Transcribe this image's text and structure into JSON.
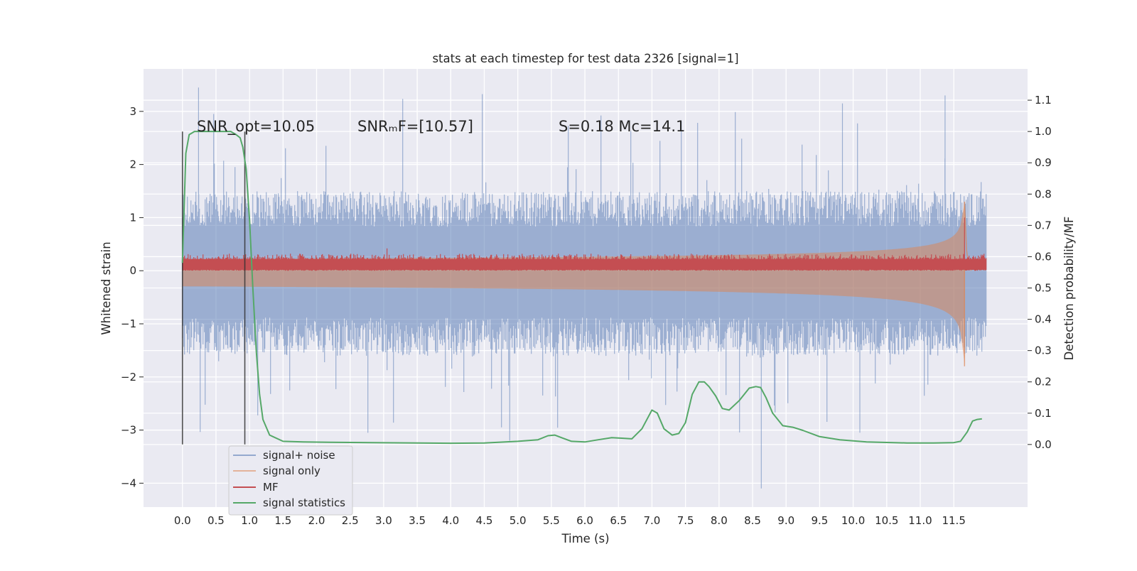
{
  "chart_data": {
    "type": "line",
    "title": "stats at each timestep for test data 2326 [signal=1]",
    "xlabel": "Time (s)",
    "ylabel": "Whitened strain",
    "y2label": "Detection probability/MF",
    "xlim": [
      -0.58,
      12.6
    ],
    "ylim": [
      -4.45,
      3.8
    ],
    "y2lim": [
      -0.2,
      1.2
    ],
    "x_ticks": [
      0.0,
      0.5,
      1.0,
      1.5,
      2.0,
      2.5,
      3.0,
      3.5,
      4.0,
      4.5,
      5.0,
      5.5,
      6.0,
      6.5,
      7.0,
      7.5,
      8.0,
      8.5,
      9.0,
      9.5,
      10.0,
      10.5,
      11.0,
      11.5
    ],
    "x_tick_labels": [
      "0.0",
      "0.5",
      "1.0",
      "1.5",
      "2.0",
      "2.5",
      "3.0",
      "3.5",
      "4.0",
      "4.5",
      "5.0",
      "5.5",
      "6.0",
      "6.5",
      "7.0",
      "7.5",
      "8.0",
      "8.5",
      "9.0",
      "9.5",
      "10.0",
      "10.5",
      "11.0",
      "11.5"
    ],
    "y_ticks": [
      -4,
      -3,
      -2,
      -1,
      0,
      1,
      2,
      3
    ],
    "y_tick_labels": [
      "−4",
      "−3",
      "−2",
      "−1",
      "0",
      "1",
      "2",
      "3"
    ],
    "y2_ticks": [
      0.0,
      0.1,
      0.2,
      0.3,
      0.4,
      0.5,
      0.6,
      0.7,
      0.8,
      0.9,
      1.0,
      1.1
    ],
    "y2_tick_labels": [
      "0.0",
      "0.1",
      "0.2",
      "0.3",
      "0.4",
      "0.5",
      "0.6",
      "0.7",
      "0.8",
      "0.9",
      "1.0",
      "1.1"
    ],
    "grid": true,
    "legend_position": "lower-left",
    "annotations": [
      {
        "text": "SNR_opt=10.05",
        "x": 0.2,
        "y": 2.7
      },
      {
        "text": "SNRₘF=[10.57]",
        "x": 2.6,
        "y": 2.7
      },
      {
        "text": "S=0.18   Mc=14.1",
        "x": 5.6,
        "y": 2.7
      }
    ],
    "vertical_lines": [
      {
        "x": 0.0,
        "y_from": -3.27,
        "y_to": 2.62
      },
      {
        "x": 0.93,
        "y_from": -3.27,
        "y_to": 2.62
      }
    ],
    "series": [
      {
        "name": "signal+ noise",
        "color": "#4c72b0",
        "kind": "noise",
        "x_range": [
          0.0,
          11.99
        ],
        "typical_range": [
          -1.6,
          1.5
        ],
        "peak_max": 3.45,
        "peak_min": -4.1
      },
      {
        "name": "signal only",
        "color": "#dd8452",
        "kind": "chirp",
        "merger_time": 11.66,
        "peak_amplitude": 1.3,
        "peak_min": -1.8
      },
      {
        "name": "MF",
        "color": "#c44e52",
        "kind": "band",
        "x_range": [
          0.0,
          11.99
        ],
        "band": [
          0.02,
          0.22
        ],
        "spike_x": 11.66,
        "spike_max": 1.0
      },
      {
        "name": "signal statistics",
        "color": "#55a868",
        "axis": "right",
        "x": [
          0.0,
          0.05,
          0.1,
          0.18,
          0.3,
          0.45,
          0.6,
          0.72,
          0.8,
          0.86,
          0.9,
          0.95,
          1.0,
          1.05,
          1.1,
          1.15,
          1.2,
          1.3,
          1.5,
          1.8,
          2.2,
          2.8,
          3.5,
          4.0,
          4.5,
          5.0,
          5.3,
          5.45,
          5.55,
          5.65,
          5.8,
          6.0,
          6.2,
          6.4,
          6.55,
          6.7,
          6.85,
          6.95,
          7.0,
          7.08,
          7.18,
          7.3,
          7.4,
          7.5,
          7.6,
          7.7,
          7.78,
          7.85,
          7.95,
          8.05,
          8.15,
          8.3,
          8.45,
          8.55,
          8.62,
          8.7,
          8.8,
          8.95,
          9.1,
          9.25,
          9.5,
          9.8,
          10.2,
          10.8,
          11.2,
          11.5,
          11.6,
          11.7,
          11.78,
          11.85,
          11.92
        ],
        "y": [
          0.58,
          0.93,
          0.99,
          1.0,
          1.0,
          1.0,
          1.0,
          1.0,
          0.99,
          0.98,
          0.95,
          0.88,
          0.72,
          0.5,
          0.3,
          0.16,
          0.08,
          0.03,
          0.01,
          0.008,
          0.007,
          0.006,
          0.005,
          0.004,
          0.005,
          0.01,
          0.015,
          0.028,
          0.03,
          0.022,
          0.01,
          0.008,
          0.015,
          0.022,
          0.02,
          0.018,
          0.05,
          0.09,
          0.11,
          0.1,
          0.05,
          0.03,
          0.035,
          0.07,
          0.16,
          0.2,
          0.2,
          0.185,
          0.155,
          0.115,
          0.11,
          0.14,
          0.18,
          0.185,
          0.182,
          0.15,
          0.1,
          0.06,
          0.055,
          0.045,
          0.025,
          0.015,
          0.008,
          0.005,
          0.005,
          0.006,
          0.01,
          0.04,
          0.075,
          0.08,
          0.082
        ]
      }
    ]
  }
}
